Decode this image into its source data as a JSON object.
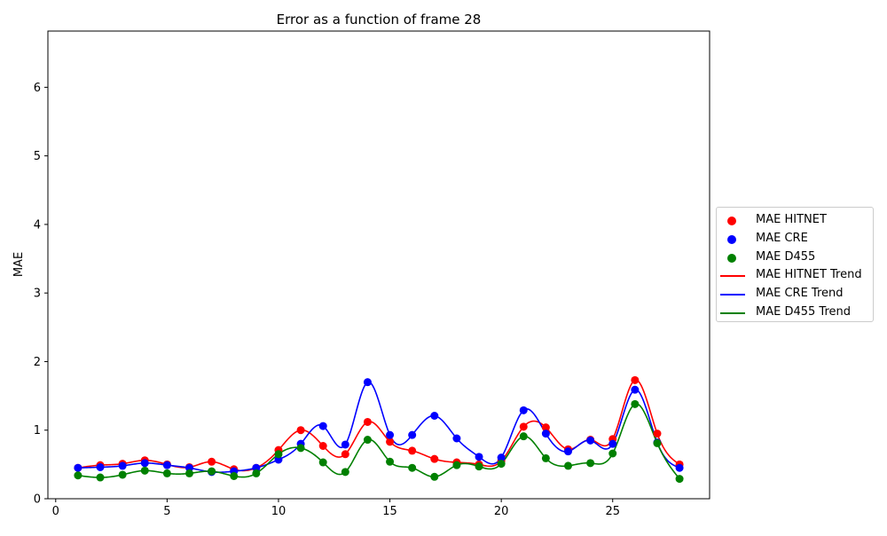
{
  "chart_data": {
    "type": "scatter",
    "title": "Error as a function of frame 28",
    "xlabel": "",
    "ylabel": "MAE",
    "xlim": [
      -0.35,
      29.35
    ],
    "ylim": [
      0,
      6.82
    ],
    "xticks": [
      0,
      5,
      10,
      15,
      20,
      25
    ],
    "yticks": [
      0,
      1,
      2,
      3,
      4,
      5,
      6
    ],
    "grid": false,
    "legend_position": "center-right, outside plot",
    "x": [
      1,
      2,
      3,
      4,
      5,
      6,
      7,
      8,
      9,
      10,
      11,
      12,
      13,
      14,
      15,
      16,
      17,
      18,
      19,
      20,
      21,
      22,
      23,
      24,
      25,
      26,
      27,
      28
    ],
    "series": [
      {
        "name": "MAE HITNET",
        "color": "#ff0000",
        "values": [
          0.45,
          0.49,
          0.51,
          0.56,
          0.5,
          0.46,
          0.54,
          0.43,
          0.45,
          0.71,
          1.0,
          0.77,
          0.65,
          1.12,
          0.83,
          0.7,
          0.58,
          0.53,
          0.5,
          0.55,
          1.05,
          1.04,
          0.72,
          0.86,
          0.87,
          1.73,
          0.95,
          0.5
        ]
      },
      {
        "name": "MAE CRE",
        "color": "#0000ff",
        "values": [
          0.45,
          0.46,
          0.48,
          0.52,
          0.49,
          0.45,
          0.39,
          0.4,
          0.45,
          0.57,
          0.8,
          1.06,
          0.79,
          1.7,
          0.93,
          0.93,
          1.21,
          0.88,
          0.61,
          0.6,
          1.29,
          0.95,
          0.69,
          0.85,
          0.8,
          1.59,
          0.82,
          0.45
        ]
      },
      {
        "name": "MAE D455",
        "color": "#008000",
        "values": [
          0.34,
          0.31,
          0.35,
          0.41,
          0.37,
          0.37,
          0.4,
          0.33,
          0.37,
          0.65,
          0.74,
          0.53,
          0.39,
          0.86,
          0.54,
          0.45,
          0.32,
          0.49,
          0.47,
          0.51,
          0.91,
          0.59,
          0.48,
          0.52,
          0.66,
          1.38,
          0.81,
          0.29
        ]
      }
    ],
    "legend": [
      {
        "label": "MAE HITNET",
        "kind": "marker",
        "color": "#ff0000"
      },
      {
        "label": "MAE CRE",
        "kind": "marker",
        "color": "#0000ff"
      },
      {
        "label": "MAE D455",
        "kind": "marker",
        "color": "#008000"
      },
      {
        "label": "MAE HITNET Trend",
        "kind": "line",
        "color": "#ff0000"
      },
      {
        "label": "MAE CRE Trend",
        "kind": "line",
        "color": "#0000ff"
      },
      {
        "label": "MAE D455 Trend",
        "kind": "line",
        "color": "#008000"
      }
    ]
  }
}
